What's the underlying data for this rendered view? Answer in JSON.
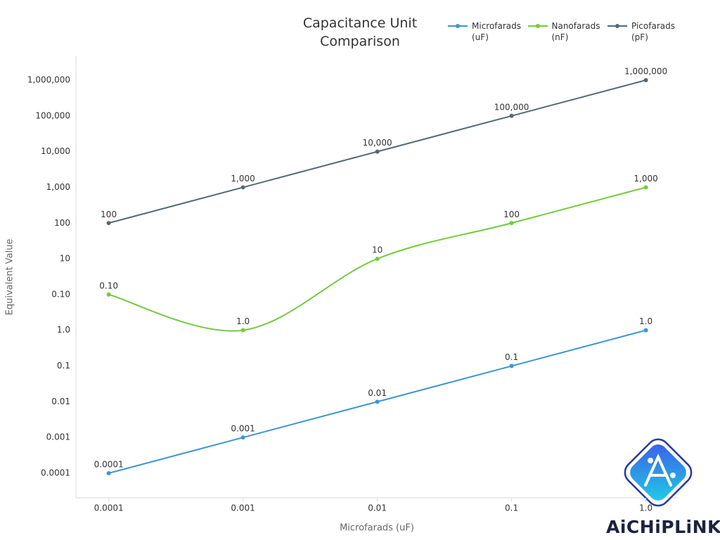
{
  "chart_data": {
    "type": "line",
    "title": "Capacitance Unit Comparison",
    "x_label": "Microfarads (uF)",
    "y_label": "Equivalent Value",
    "x": [
      0.0001,
      0.001,
      0.01,
      0.1,
      1
    ],
    "x_scale": "log",
    "xlim": [
      5.7e-05,
      1.75
    ],
    "xticks": [
      0.0001,
      0.001,
      0.01,
      0.1,
      {
        "value": 1,
        "label": "1.0"
      }
    ],
    "y_scale": "category",
    "ycategories": [
      "0.0001",
      "0.001",
      "0.01",
      "0.1",
      "1.0",
      "0.10",
      "10",
      "100",
      "1,000",
      "10,000",
      "100,000",
      "1,000,000"
    ],
    "series": [
      {
        "name": "Microfarads (uF)",
        "color": "#3d95d3",
        "curve": "straight",
        "values": [
          0.0001,
          0.001,
          0.01,
          0.1,
          1
        ],
        "value_labels": [
          "0.0001",
          "0.001",
          "0.01",
          "0.1",
          "1.0"
        ]
      },
      {
        "name": "Nanofarads (nF)",
        "color": "#72cc3a",
        "curve": "smooth",
        "values": [
          0.1,
          1,
          10,
          100,
          1000
        ],
        "value_labels": [
          "0.10",
          "1.0",
          "10",
          "100",
          "1,000"
        ]
      },
      {
        "name": "Picofarads (pF)",
        "color": "#546a73",
        "curve": "straight",
        "values": [
          100,
          1000,
          10000,
          100000,
          1000000
        ],
        "value_labels": [
          "100",
          "1,000",
          "10,000",
          "100,000",
          "1,000,000"
        ]
      }
    ],
    "legend": "top-right",
    "grid": false,
    "watermark": "AiCHiPLiNK"
  }
}
